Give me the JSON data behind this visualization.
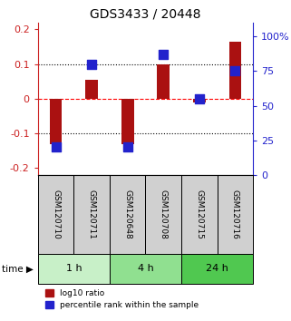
{
  "title": "GDS3433 / 20448",
  "samples": [
    "GSM120710",
    "GSM120711",
    "GSM120648",
    "GSM120708",
    "GSM120715",
    "GSM120716"
  ],
  "log10_ratio": [
    -0.13,
    0.055,
    -0.13,
    0.1,
    -0.01,
    0.165
  ],
  "percentile_rank": [
    20,
    80,
    20,
    87,
    55,
    75
  ],
  "time_groups": [
    {
      "label": "1 h",
      "start": 0,
      "end": 2,
      "color": "#c8f0c8"
    },
    {
      "label": "4 h",
      "start": 2,
      "end": 4,
      "color": "#90e090"
    },
    {
      "label": "24 h",
      "start": 4,
      "end": 6,
      "color": "#50c850"
    }
  ],
  "bar_color": "#aa1111",
  "dot_color": "#2222cc",
  "left_ylim": [
    -0.22,
    0.22
  ],
  "right_ylim": [
    0,
    110
  ],
  "left_yticks": [
    -0.2,
    -0.1,
    0,
    0.1,
    0.2
  ],
  "left_yticklabels": [
    "-0.2",
    "-0.1",
    "0",
    "0.1",
    "0.2"
  ],
  "right_yticks": [
    0,
    25,
    50,
    75,
    100
  ],
  "right_yticklabels": [
    "0",
    "25",
    "50",
    "75",
    "100%"
  ],
  "hlines": [
    -0.1,
    0,
    0.1
  ],
  "sample_box_color": "#d0d0d0",
  "title_color": "#000000",
  "left_axis_color": "#cc2222",
  "right_axis_color": "#2222cc",
  "legend_red_label": "log10 ratio",
  "legend_blue_label": "percentile rank within the sample"
}
